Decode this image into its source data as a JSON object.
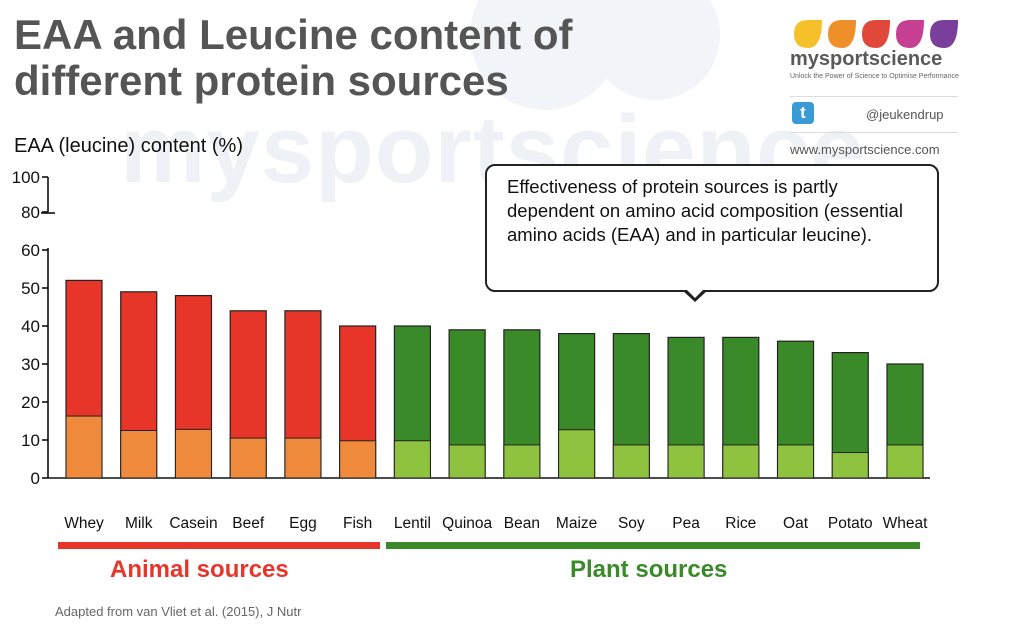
{
  "title_lines": [
    "EAA and Leucine content of",
    "different protein sources"
  ],
  "brand": {
    "name": "mysportscience",
    "tagline": "Unlock the Power of Science to Optimise Performance",
    "twitter_icon": "t",
    "handle": "@jeukendrup",
    "website": "www.mysportscience.com",
    "watermark": "mysportscience",
    "leaf_colors": [
      "#f5c02a",
      "#ef8f2a",
      "#e2483a",
      "#c63f93",
      "#7a3f9a"
    ]
  },
  "callout": "Effectiveness of protein sources is partly dependent on amino acid composition (essential amino acids (EAA) and in particular leucine).",
  "groups": [
    {
      "label": "Animal sources",
      "color": "#e8352a"
    },
    {
      "label": "Plant sources",
      "color": "#3b8a2a"
    }
  ],
  "footnote": "Adapted from van Vliet et al. (2015), J Nutr",
  "chart_data": {
    "type": "bar",
    "ylabel": "EAA (leucine) content (%)",
    "categories": [
      "Whey",
      "Milk",
      "Casein",
      "Beef",
      "Egg",
      "Fish",
      "Lentil",
      "Quinoa",
      "Bean",
      "Maize",
      "Soy",
      "Pea",
      "Rice",
      "Oat",
      "Potato",
      "Wheat"
    ],
    "group_of_category": [
      "animal",
      "animal",
      "animal",
      "animal",
      "animal",
      "animal",
      "plant",
      "plant",
      "plant",
      "plant",
      "plant",
      "plant",
      "plant",
      "plant",
      "plant",
      "plant"
    ],
    "series": [
      {
        "values": [
          52,
          49,
          48,
          44,
          44,
          40,
          40,
          39,
          39,
          38,
          38,
          37,
          37,
          36,
          33,
          30
        ]
      },
      {
        "values": [
          16.3,
          12.5,
          12.8,
          10.5,
          10.5,
          9.8,
          9.8,
          8.7,
          8.7,
          12.7,
          8.7,
          8.7,
          8.7,
          8.7,
          6.7,
          8.7
        ]
      }
    ],
    "colors": {
      "animal_eaa": "#e8352a",
      "animal_leucine": "#ef8a3c",
      "plant_eaa": "#3b8a2a",
      "plant_leucine": "#8fc33f"
    },
    "yticks_lower": [
      0,
      10,
      20,
      30,
      40,
      50,
      60
    ],
    "yticks_upper": [
      80,
      100
    ],
    "axis_break": true,
    "grid": false
  }
}
